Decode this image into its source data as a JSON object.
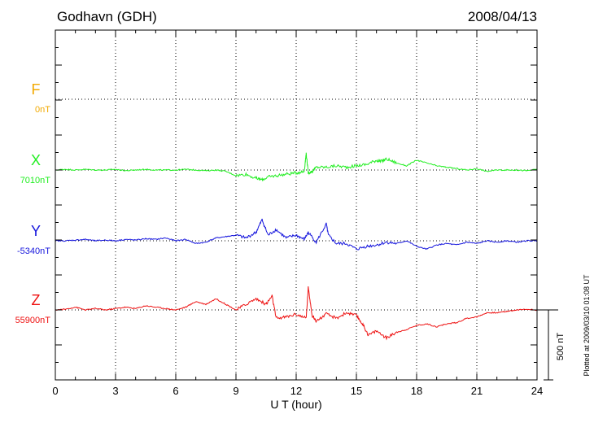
{
  "header": {
    "station": "Godhavn (GDH)",
    "date": "2008/04/13"
  },
  "footer": {
    "plotted": "Plotted at 2009/03/10 01:08 UT",
    "scale_label": "500 nT"
  },
  "chart_data": {
    "type": "line",
    "title": "Godhavn (GDH)",
    "date": "2008/04/13",
    "xlabel": "U T (hour)",
    "xlim": [
      0,
      24
    ],
    "xticks": [
      "0",
      "3",
      "6",
      "9",
      "12",
      "15",
      "18",
      "21",
      "24"
    ],
    "scale_bar_nT": 500,
    "grid": true,
    "series": [
      {
        "name": "F",
        "baseline_label": "0nT",
        "color": "#f2a900",
        "x": [],
        "y": []
      },
      {
        "name": "X",
        "baseline_label": "7010nT",
        "color": "#22ee22",
        "x": [
          0,
          0.5,
          1,
          1.5,
          2,
          2.5,
          3,
          3.5,
          4,
          4.5,
          5,
          5.5,
          6,
          6.5,
          7,
          7.5,
          8,
          8.5,
          9,
          9.5,
          10,
          10.3,
          10.6,
          11,
          11.5,
          12,
          12.4,
          12.5,
          12.6,
          12.8,
          13,
          13.5,
          14,
          14.5,
          15,
          15.5,
          16,
          16.2,
          16.5,
          17,
          17.5,
          18,
          18.5,
          19,
          19.5,
          20,
          20.5,
          21,
          21.5,
          22,
          22.5,
          23,
          23.5,
          24
        ],
        "y": [
          0,
          5,
          0,
          5,
          0,
          0,
          5,
          -5,
          0,
          5,
          0,
          0,
          0,
          5,
          0,
          -5,
          0,
          -10,
          -40,
          -30,
          -60,
          -70,
          -50,
          -40,
          -30,
          -20,
          -10,
          120,
          -20,
          -10,
          20,
          20,
          30,
          20,
          30,
          40,
          70,
          60,
          80,
          50,
          30,
          70,
          50,
          30,
          20,
          10,
          0,
          10,
          -10,
          0,
          0,
          0,
          -5,
          5
        ]
      },
      {
        "name": "Y",
        "baseline_label": "-5340nT",
        "color": "#1515dd",
        "x": [
          0,
          0.5,
          1,
          1.5,
          2,
          2.5,
          3,
          3.5,
          4,
          4.5,
          5,
          5.5,
          6,
          6.5,
          7,
          7.5,
          8,
          8.5,
          9,
          9.5,
          10,
          10.3,
          10.6,
          11,
          11.5,
          12,
          12.4,
          12.6,
          13,
          13.5,
          13.6,
          14,
          14.5,
          15,
          15.5,
          16,
          16.5,
          17,
          17.5,
          18,
          18.5,
          19,
          19.5,
          20,
          20.5,
          21,
          21.5,
          22,
          22.5,
          23,
          23.5,
          24
        ],
        "y": [
          0,
          0,
          5,
          10,
          0,
          5,
          0,
          10,
          5,
          15,
          10,
          20,
          0,
          10,
          -20,
          -10,
          20,
          30,
          40,
          20,
          60,
          150,
          40,
          80,
          20,
          40,
          10,
          60,
          -10,
          120,
          40,
          -20,
          -20,
          -60,
          -40,
          -30,
          -10,
          -20,
          0,
          -40,
          -60,
          -30,
          -20,
          -30,
          -10,
          -20,
          0,
          -10,
          0,
          -10,
          0,
          0
        ]
      },
      {
        "name": "Z",
        "baseline_label": "55900nT",
        "color": "#ee1111",
        "x": [
          0,
          0.5,
          1,
          1.5,
          2,
          2.5,
          3,
          3.5,
          4,
          4.5,
          5,
          5.5,
          6,
          6.5,
          7,
          7.5,
          8,
          8.5,
          9,
          9.5,
          10,
          10.5,
          10.8,
          11,
          11.5,
          12,
          12.5,
          12.6,
          12.8,
          13,
          13.5,
          14,
          14.5,
          15,
          15.3,
          15.6,
          16,
          16.5,
          17,
          17.5,
          18,
          18.5,
          19,
          19.5,
          20,
          20.5,
          21,
          21.5,
          22,
          22.5,
          23,
          23.5,
          24
        ],
        "y": [
          0,
          5,
          20,
          0,
          10,
          0,
          10,
          20,
          10,
          30,
          20,
          10,
          0,
          20,
          60,
          40,
          80,
          40,
          0,
          40,
          80,
          40,
          100,
          -60,
          -50,
          -30,
          -60,
          160,
          -40,
          -80,
          -30,
          -60,
          -20,
          -40,
          -100,
          -180,
          -150,
          -200,
          -160,
          -140,
          -110,
          -100,
          -120,
          -100,
          -90,
          -60,
          -50,
          -20,
          -20,
          -10,
          0,
          5,
          0
        ]
      }
    ]
  }
}
